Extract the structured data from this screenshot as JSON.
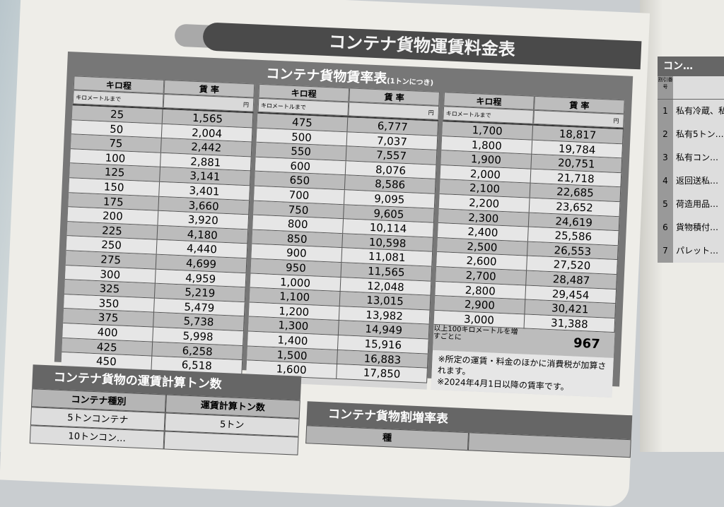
{
  "title": "コンテナ貨物運賃料金表",
  "rate_table": {
    "title": "コンテナ貨物賃率表",
    "unit_note": "(1トンにつき)",
    "col_km": "キロ程",
    "col_rate": "賃 率",
    "km_unit": "キロメートルまで",
    "rate_unit": "円",
    "columns": [
      [
        [
          "25",
          "1,565"
        ],
        [
          "50",
          "2,004"
        ],
        [
          "75",
          "2,442"
        ],
        [
          "100",
          "2,881"
        ],
        [
          "125",
          "3,141"
        ],
        [
          "150",
          "3,401"
        ],
        [
          "175",
          "3,660"
        ],
        [
          "200",
          "3,920"
        ],
        [
          "225",
          "4,180"
        ],
        [
          "250",
          "4,440"
        ],
        [
          "275",
          "4,699"
        ],
        [
          "300",
          "4,959"
        ],
        [
          "325",
          "5,219"
        ],
        [
          "350",
          "5,479"
        ],
        [
          "375",
          "5,738"
        ],
        [
          "400",
          "5,998"
        ],
        [
          "425",
          "6,258"
        ],
        [
          "450",
          "6,518"
        ]
      ],
      [
        [
          "475",
          "6,777"
        ],
        [
          "500",
          "7,037"
        ],
        [
          "550",
          "7,557"
        ],
        [
          "600",
          "8,076"
        ],
        [
          "650",
          "8,586"
        ],
        [
          "700",
          "9,095"
        ],
        [
          "750",
          "9,605"
        ],
        [
          "800",
          "10,114"
        ],
        [
          "850",
          "10,598"
        ],
        [
          "900",
          "11,081"
        ],
        [
          "950",
          "11,565"
        ],
        [
          "1,000",
          "12,048"
        ],
        [
          "1,100",
          "13,015"
        ],
        [
          "1,200",
          "13,982"
        ],
        [
          "1,300",
          "14,949"
        ],
        [
          "1,400",
          "15,916"
        ],
        [
          "1,500",
          "16,883"
        ],
        [
          "1,600",
          "17,850"
        ]
      ],
      [
        [
          "1,700",
          "18,817"
        ],
        [
          "1,800",
          "19,784"
        ],
        [
          "1,900",
          "20,751"
        ],
        [
          "2,000",
          "21,718"
        ],
        [
          "2,100",
          "22,685"
        ],
        [
          "2,200",
          "23,652"
        ],
        [
          "2,300",
          "24,619"
        ],
        [
          "2,400",
          "25,586"
        ],
        [
          "2,500",
          "26,553"
        ],
        [
          "2,600",
          "27,520"
        ],
        [
          "2,700",
          "28,487"
        ],
        [
          "2,800",
          "29,454"
        ],
        [
          "2,900",
          "30,421"
        ],
        [
          "3,000",
          "31,388"
        ]
      ]
    ],
    "extra_label": "以上100キロメートルを増すごとに",
    "extra_value": "967",
    "note1": "※所定の運賃・料金のほかに消費税が加算されます。",
    "note2": "※2024年4月1日以降の賃率です。"
  },
  "tonnage": {
    "title": "コンテナ貨物の運賃計算トン数",
    "col_type": "コンテナ種別",
    "col_tons": "運賃計算トン数",
    "rows": [
      [
        "5トンコンテナ",
        "5トン"
      ],
      [
        "10トンコン…",
        ""
      ]
    ]
  },
  "surcharge": {
    "title": "コンテナ貨物割増率表",
    "col": "種"
  },
  "right_page": {
    "title": "コン…",
    "col_no": "割引番号",
    "items": [
      [
        "1",
        "私有冷蔵、私有ホッパ…"
      ],
      [
        "2",
        "私有5トン…"
      ],
      [
        "3",
        "私有コン…"
      ],
      [
        "4",
        "返回送私…"
      ],
      [
        "5",
        "荷造用品…"
      ],
      [
        "6",
        "貨物積付…"
      ],
      [
        "7",
        "パレット…"
      ]
    ]
  }
}
